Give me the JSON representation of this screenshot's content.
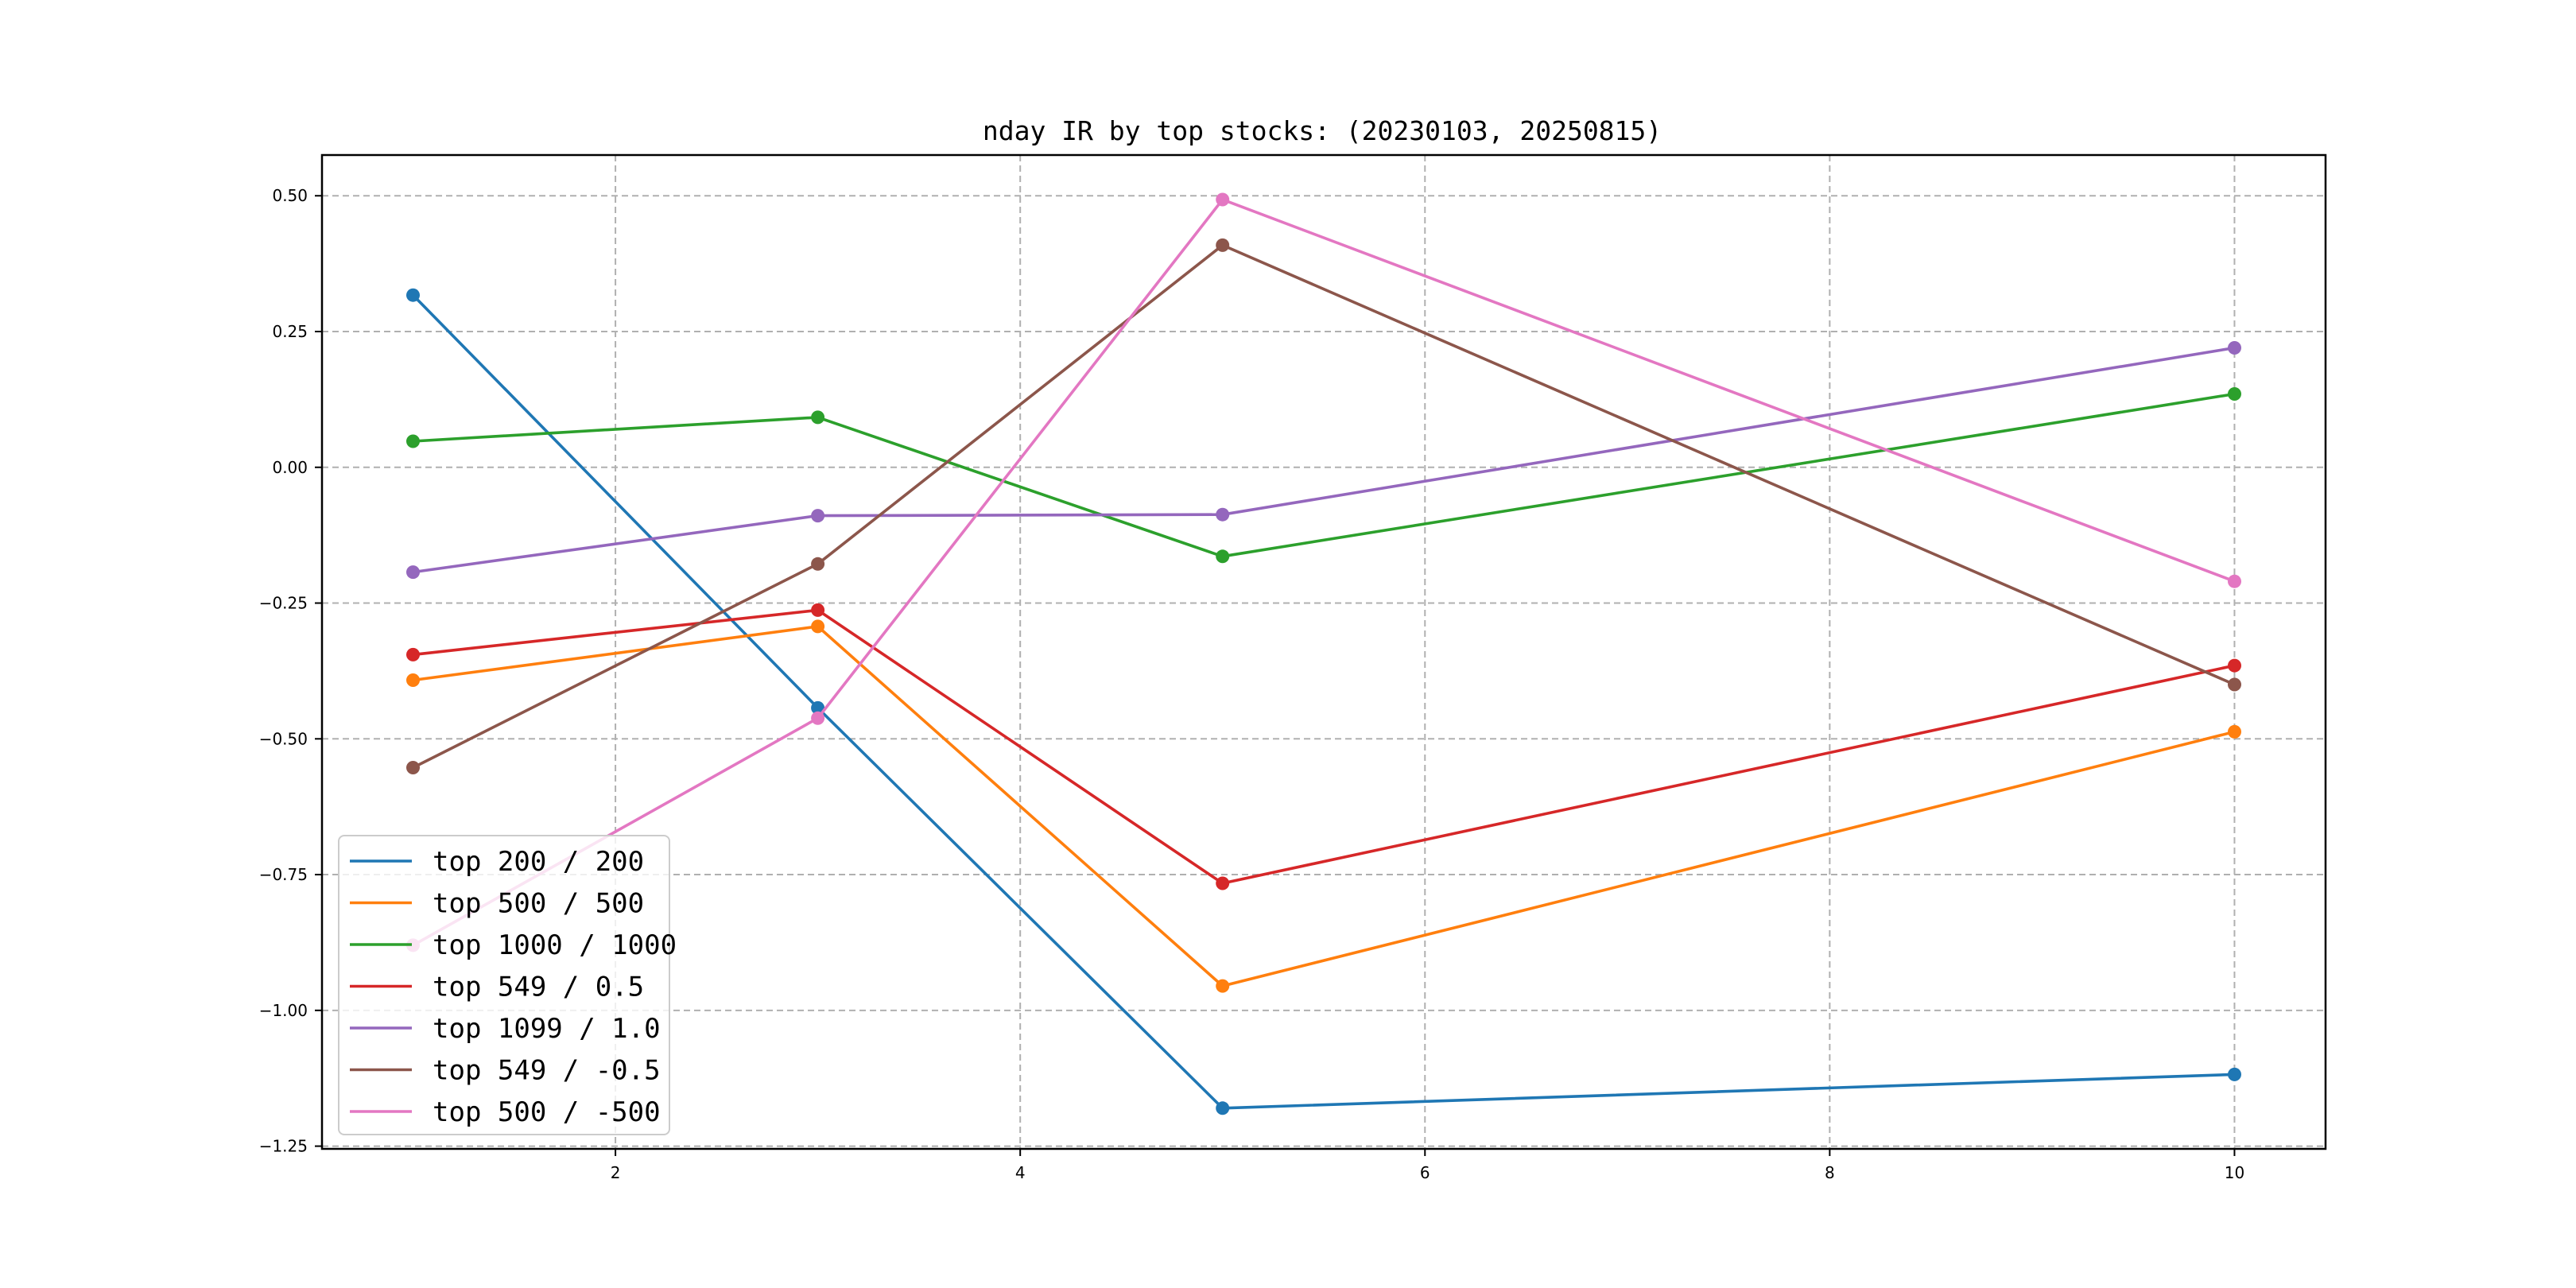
{
  "chart_data": {
    "type": "line",
    "title": "nday IR by top stocks: (20230103, 20250815)",
    "xlabel": "",
    "ylabel": "",
    "x": [
      1,
      3,
      5,
      10
    ],
    "xlim": [
      0.55,
      10.45
    ],
    "ylim": [
      -1.255,
      0.575
    ],
    "xticks": [
      2,
      4,
      6,
      8,
      10
    ],
    "yticks": [
      0.5,
      0.25,
      0.0,
      -0.25,
      -0.5,
      -0.75,
      -1.0,
      -1.25
    ],
    "xtick_labels": [
      "2",
      "4",
      "6",
      "8",
      "10"
    ],
    "ytick_labels": [
      "0.50",
      "0.25",
      "0.00",
      "−0.25",
      "−0.50",
      "−0.75",
      "−1.00",
      "−1.25"
    ],
    "grid": true,
    "legend_position": "lower-left",
    "series": [
      {
        "name": "top 200 / 200",
        "color": "#1f77b4",
        "values": [
          0.317,
          -0.443,
          -1.18,
          -1.118
        ]
      },
      {
        "name": "top 500 / 500",
        "color": "#ff7f0e",
        "values": [
          -0.392,
          -0.293,
          -0.955,
          -0.487
        ]
      },
      {
        "name": "top 1000 / 1000",
        "color": "#2ca02c",
        "values": [
          0.048,
          0.092,
          -0.164,
          0.135
        ]
      },
      {
        "name": "top 549 / 0.5",
        "color": "#d62728",
        "values": [
          -0.345,
          -0.263,
          -0.766,
          -0.365
        ]
      },
      {
        "name": "top 1099 / 1.0",
        "color": "#9467bd",
        "values": [
          -0.193,
          -0.089,
          -0.087,
          0.22
        ]
      },
      {
        "name": "top 549 / -0.5",
        "color": "#8c564b",
        "values": [
          -0.553,
          -0.178,
          0.409,
          -0.4
        ]
      },
      {
        "name": "top 500 / -500",
        "color": "#e377c2",
        "values": [
          -0.88,
          -0.462,
          0.493,
          -0.21
        ]
      }
    ]
  }
}
